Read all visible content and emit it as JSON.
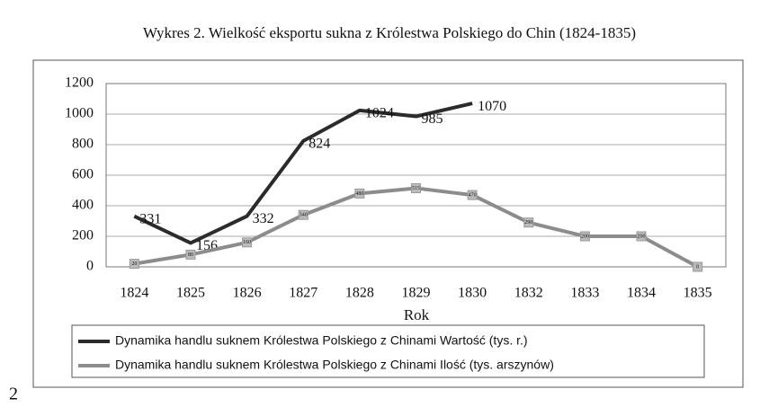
{
  "chart_data": {
    "type": "line",
    "title": "Wykres 2. Wielkość eksportu sukna z Królestwa Polskiego do Chin (1824-1835)",
    "x_label": "Rok",
    "categories": [
      "1824",
      "1825",
      "1826",
      "1827",
      "1828",
      "1829",
      "1830",
      "1832",
      "1833",
      "1834",
      "1835"
    ],
    "series": [
      {
        "name": "Dynamika handlu suknem Królestwa Polskiego z Chinami Wartość (tys. r.)",
        "color": "#2b2b2b",
        "values": [
          331,
          156,
          332,
          824,
          1024,
          985,
          1070,
          null,
          null,
          null,
          null
        ]
      },
      {
        "name": "Dynamika handlu suknem Królestwa Polskiego z Chinami Ilość (tys. arszynów)",
        "color": "#8c8c8c",
        "values": [
          20,
          80,
          160,
          340,
          480,
          515,
          470,
          290,
          200,
          200,
          0
        ]
      }
    ],
    "ylim": [
      0,
      1200
    ],
    "yticks": [
      0,
      200,
      400,
      600,
      800,
      1000,
      1200
    ],
    "grid": true
  },
  "page_number": "2"
}
